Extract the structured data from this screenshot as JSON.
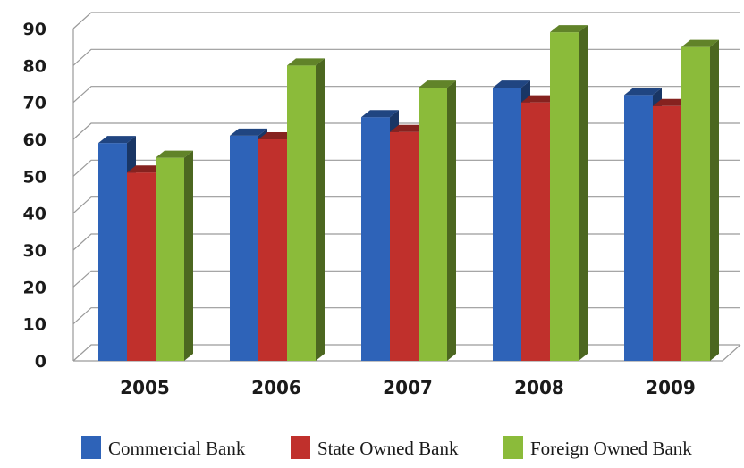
{
  "chart_data": {
    "type": "bar",
    "categories": [
      "2005",
      "2006",
      "2007",
      "2008",
      "2009"
    ],
    "series": [
      {
        "name": "Commercial Bank",
        "values": [
          59,
          61,
          66,
          74,
          72
        ],
        "color": "#2e63b8"
      },
      {
        "name": "State Owned Bank",
        "values": [
          51,
          60,
          62,
          70,
          69
        ],
        "color": "#c0302c"
      },
      {
        "name": "Foreign Owned Bank",
        "values": [
          55,
          80,
          74,
          89,
          85
        ],
        "color": "#8bbb3a"
      }
    ],
    "ylim": [
      0,
      90
    ],
    "yticks": [
      "0",
      "10",
      "20",
      "30",
      "40",
      "50",
      "60",
      "70",
      "80",
      "90"
    ],
    "grid": true,
    "legend": "bottom",
    "style": "3d-clustered-bar"
  }
}
